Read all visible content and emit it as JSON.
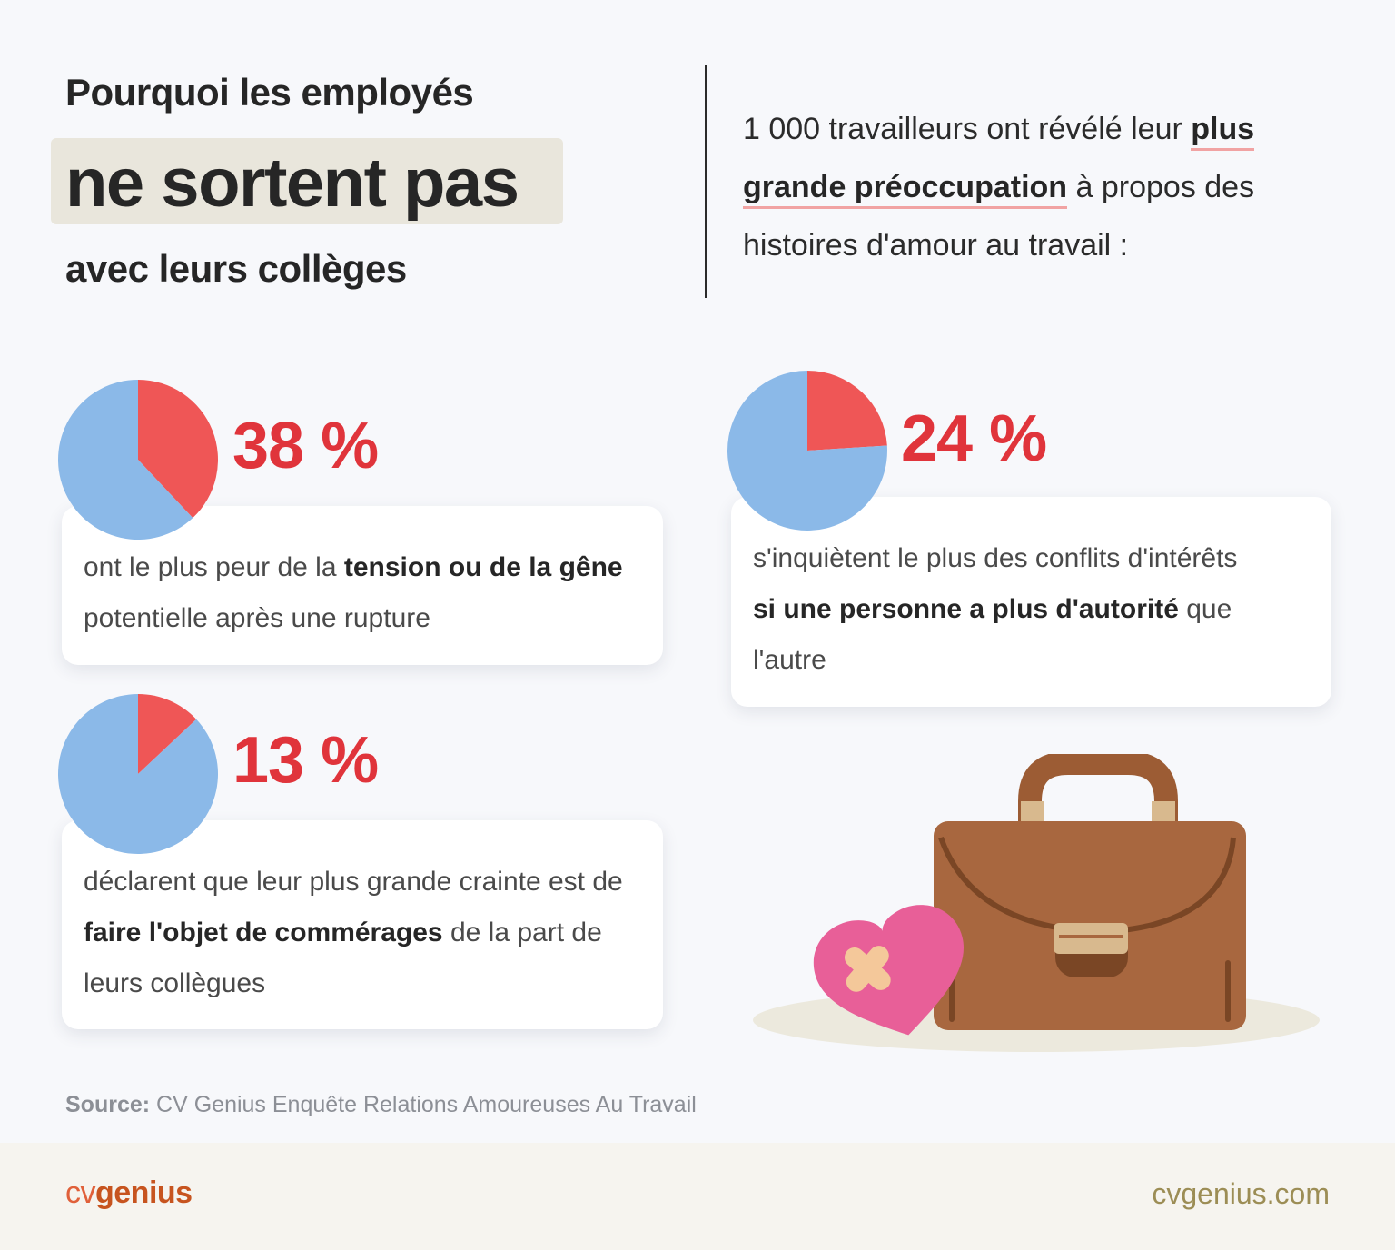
{
  "title": {
    "line1": "Pourquoi les employés",
    "line2": "ne sortent pas",
    "line3": "avec leurs collèges"
  },
  "intro": {
    "part1": "1 000 travailleurs ont révélé leur ",
    "highlight": "plus grande préoccupation",
    "part2": " à propos des histoires d'amour au travail :"
  },
  "stats": [
    {
      "value_label": "38 %",
      "text_a": "ont le plus peur de la ",
      "bold": "tension ou de la gêne",
      "text_b": " potentielle après une rupture"
    },
    {
      "value_label": "24 %",
      "text_a": "s'inquiètent le plus des conflits d'intérêts ",
      "bold": "si une personne a plus d'autorité",
      "text_b": " que l'autre"
    },
    {
      "value_label": "13 %",
      "text_a": "déclarent que leur plus grande crainte est de ",
      "bold": "faire l'objet de commérages",
      "text_b": " de la part de leurs collègues"
    }
  ],
  "chart_data": [
    {
      "type": "pie",
      "values": [
        38,
        62
      ],
      "labels": [
        "38 %",
        ""
      ],
      "colors": [
        "#ef5656",
        "#8bb9e8"
      ]
    },
    {
      "type": "pie",
      "values": [
        24,
        76
      ],
      "labels": [
        "24 %",
        ""
      ],
      "colors": [
        "#ef5656",
        "#8bb9e8"
      ]
    },
    {
      "type": "pie",
      "values": [
        13,
        87
      ],
      "labels": [
        "13 %",
        ""
      ],
      "colors": [
        "#ef5656",
        "#8bb9e8"
      ]
    }
  ],
  "source": {
    "label": "Source:",
    "text": " CV Genius Enquête Relations Amoureuses Au Travail"
  },
  "footer": {
    "logo_cv": "cv",
    "logo_genius": "genius",
    "site": "cvgenius.com"
  },
  "colors": {
    "accent_red": "#e0343b",
    "pie_red": "#ef5656",
    "pie_blue": "#8bb9e8",
    "highlight_bg": "#e9e6dc",
    "brand_orange": "#c7541f"
  },
  "illustration": {
    "icons": [
      "briefcase-icon",
      "bandaged-heart-icon"
    ]
  }
}
